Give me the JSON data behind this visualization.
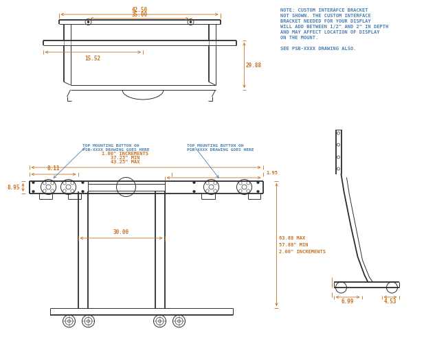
{
  "bg_color": "#ffffff",
  "line_color": "#2c2c2c",
  "dim_color": "#c87020",
  "note_color": "#4a7eb5",
  "fig_width": 6.22,
  "fig_height": 5.1,
  "note_text": "NOTE: CUSTOM INTERAFCE BRACKET\nNOT SHOWN. THE CUSTOM INTERFACE\nBRACKET NEEDED FOR YOUR DISPLAY\nWILL ADD BETWEEN 1/2\" AND 2\" IN DEPTH\nAND MAY AFFECT LOCATION OF DISPLAY\nON THE MOUNT.\n\nSEE PSB-XXXX DRAWING ALSO.",
  "dims": {
    "top_width": "42.50",
    "inner_width": "35.00",
    "depth": "29.88",
    "center_offset": "15.52",
    "left_offset": "8.11",
    "height_left": "8.95",
    "arm_max": "43.25\" MAX",
    "arm_min": "37.25\" MIN",
    "arm_inc": "1.00\" INCREMENTS",
    "right_offset": "1.95",
    "col_spacing": "30.00",
    "h_max": "63.88 MAX",
    "h_min": "57.88\" MIN",
    "h_inc": "2.00\" INCREMENTS",
    "sw1": "6.99",
    "sw2": "4.53"
  },
  "labels": {
    "left_mount": "TOP MOUNTING BUTTON ON\nPSB-XXXX DRAWING GOES HERE",
    "right_mount": "TOP MOUNTING BUTTON ON\nPSB-XXXX DRAWING GOES HERE"
  }
}
